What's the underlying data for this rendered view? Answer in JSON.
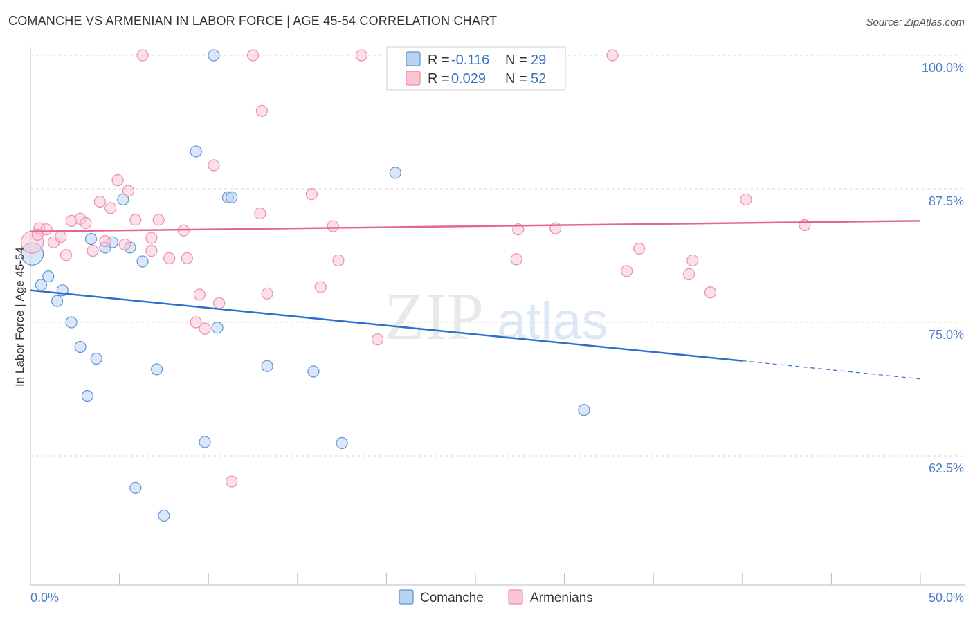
{
  "title": "COMANCHE VS ARMENIAN IN LABOR FORCE | AGE 45-54 CORRELATION CHART",
  "source": "Source: ZipAtlas.com",
  "watermark": {
    "zip": "ZIP",
    "atlas": "atlas"
  },
  "colors": {
    "comanche_fill": "#b9d3f3",
    "comanche_stroke": "#5f93d8",
    "comanche_line": "#2e6fce",
    "armenian_fill": "#f9c5d5",
    "armenian_stroke": "#ec8eab",
    "armenian_line": "#e4668f",
    "tick_label": "#4a7fc9",
    "grid": "#d9d9d9"
  },
  "legend": {
    "rows": [
      {
        "r_label": "R = ",
        "r_value": "-0.116",
        "n_label": "N = ",
        "n_value": "29"
      },
      {
        "r_label": "R = ",
        "r_value": "0.029",
        "n_label": "N = ",
        "n_value": "52"
      }
    ]
  },
  "bottom_legend": [
    "Comanche",
    "Armenians"
  ],
  "chart_data": {
    "type": "scatter",
    "title": "COMANCHE VS ARMENIAN IN LABOR FORCE | AGE 45-54 CORRELATION CHART",
    "xlabel": "",
    "ylabel": "In Labor Force | Age 45-54",
    "xlim": [
      0,
      50
    ],
    "ylim": [
      50,
      101
    ],
    "x_tick_labels": [
      "0.0%",
      "50.0%"
    ],
    "y_ticks": [
      62.5,
      75.0,
      87.5,
      100.0
    ],
    "y_tick_labels": [
      "62.5%",
      "75.0%",
      "87.5%",
      "100.0%"
    ],
    "series": [
      {
        "name": "Comanche",
        "r": -0.116,
        "n": 29,
        "trend": {
          "x0": 0,
          "y0": 78.0,
          "x1": 40,
          "y1": 71.4,
          "dash_to_x": 50,
          "dash_to_y": 69.7
        },
        "points": [
          [
            0.1,
            81.4,
            16
          ],
          [
            0.6,
            78.5,
            8
          ],
          [
            1.0,
            79.3,
            8
          ],
          [
            1.5,
            77.0,
            8
          ],
          [
            1.8,
            78.0,
            8
          ],
          [
            2.3,
            75.0,
            8
          ],
          [
            2.8,
            72.7,
            8
          ],
          [
            3.2,
            68.1,
            8
          ],
          [
            3.7,
            71.6,
            8
          ],
          [
            3.4,
            82.8,
            8
          ],
          [
            4.2,
            82.0,
            8
          ],
          [
            4.6,
            82.5,
            8
          ],
          [
            5.2,
            86.5,
            8
          ],
          [
            5.6,
            82.0,
            8
          ],
          [
            5.9,
            59.5,
            8
          ],
          [
            6.3,
            80.7,
            8
          ],
          [
            7.1,
            70.6,
            8
          ],
          [
            7.5,
            56.9,
            8
          ],
          [
            9.3,
            91.0,
            8
          ],
          [
            9.8,
            63.8,
            8
          ],
          [
            10.3,
            100.0,
            8
          ],
          [
            10.5,
            74.5,
            8
          ],
          [
            11.1,
            86.7,
            8
          ],
          [
            11.3,
            86.7,
            8
          ],
          [
            13.3,
            70.9,
            8
          ],
          [
            15.9,
            70.4,
            8
          ],
          [
            17.5,
            63.7,
            8
          ],
          [
            20.5,
            89.0,
            8
          ],
          [
            31.1,
            66.8,
            8
          ]
        ]
      },
      {
        "name": "Armenians",
        "r": 0.029,
        "n": 52,
        "trend": {
          "x0": 0,
          "y0": 83.5,
          "x1": 50,
          "y1": 84.5
        },
        "points": [
          [
            0.1,
            82.5,
            16
          ],
          [
            0.5,
            83.8,
            8
          ],
          [
            0.9,
            83.7,
            8
          ],
          [
            1.3,
            82.5,
            8
          ],
          [
            1.7,
            83.0,
            8
          ],
          [
            2.0,
            81.3,
            8
          ],
          [
            2.3,
            84.5,
            8
          ],
          [
            2.8,
            84.7,
            8
          ],
          [
            3.1,
            84.3,
            8
          ],
          [
            3.5,
            81.7,
            8
          ],
          [
            3.9,
            86.3,
            8
          ],
          [
            4.2,
            82.6,
            8
          ],
          [
            4.5,
            85.7,
            8
          ],
          [
            4.9,
            88.3,
            8
          ],
          [
            5.3,
            82.3,
            8
          ],
          [
            5.5,
            87.3,
            8
          ],
          [
            5.9,
            84.6,
            8
          ],
          [
            6.3,
            100.0,
            8
          ],
          [
            6.8,
            81.7,
            8
          ],
          [
            6.8,
            82.9,
            8
          ],
          [
            7.2,
            84.6,
            8
          ],
          [
            7.8,
            81.0,
            8
          ],
          [
            8.6,
            83.6,
            8
          ],
          [
            8.8,
            81.0,
            8
          ],
          [
            9.3,
            75.0,
            8
          ],
          [
            9.5,
            77.6,
            8
          ],
          [
            9.8,
            74.4,
            8
          ],
          [
            10.3,
            89.7,
            8
          ],
          [
            10.6,
            76.8,
            8
          ],
          [
            11.3,
            60.1,
            8
          ],
          [
            12.5,
            100.0,
            8
          ],
          [
            12.9,
            85.2,
            8
          ],
          [
            13.0,
            94.8,
            8
          ],
          [
            13.3,
            77.7,
            8
          ],
          [
            15.8,
            87.0,
            8
          ],
          [
            16.3,
            78.3,
            8
          ],
          [
            17.0,
            84.0,
            8
          ],
          [
            17.3,
            80.8,
            8
          ],
          [
            18.6,
            100.0,
            8
          ],
          [
            19.5,
            73.4,
            8
          ],
          [
            27.3,
            80.9,
            8
          ],
          [
            27.4,
            83.7,
            8
          ],
          [
            29.5,
            83.8,
            8
          ],
          [
            32.7,
            100.0,
            8
          ],
          [
            33.5,
            79.8,
            8
          ],
          [
            34.2,
            81.9,
            8
          ],
          [
            37.0,
            79.5,
            8
          ],
          [
            37.2,
            80.8,
            8
          ],
          [
            38.2,
            77.8,
            8
          ],
          [
            40.2,
            86.5,
            8
          ],
          [
            43.5,
            84.1,
            8
          ],
          [
            0.4,
            83.2,
            8
          ]
        ]
      }
    ]
  }
}
